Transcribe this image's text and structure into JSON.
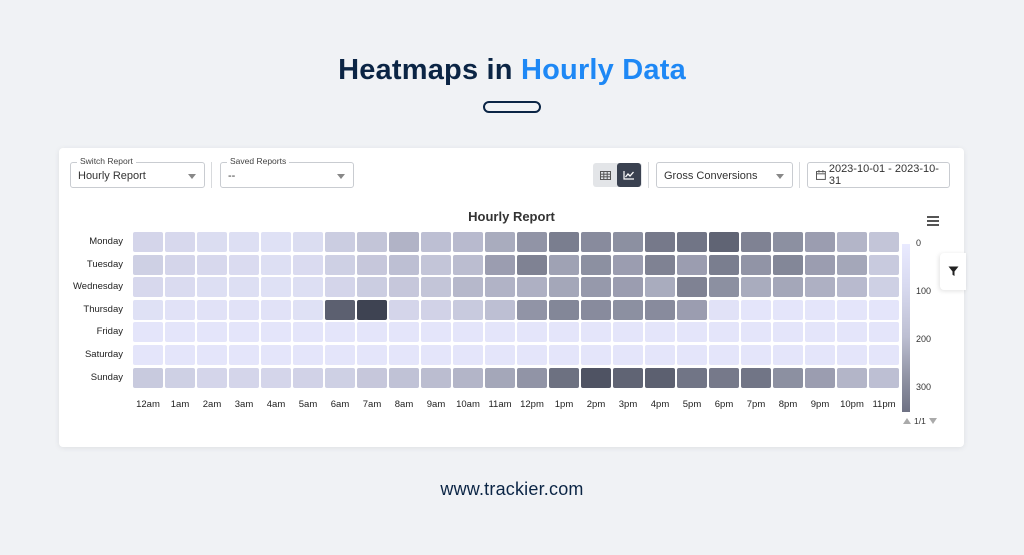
{
  "hero": {
    "title_part1": "Heatmaps in ",
    "title_part2": "Hourly Data"
  },
  "toolbar": {
    "switch_report": {
      "label": "Switch Report",
      "value": "Hourly Report"
    },
    "saved_reports": {
      "label": "Saved Reports",
      "value": "--"
    },
    "metric": {
      "value": "Gross Conversions"
    },
    "date_range": "2023-10-01 - 2023-10-31",
    "view_toggle": {
      "options": [
        "table-icon",
        "chart-icon"
      ],
      "active": "chart-icon"
    }
  },
  "colors": {
    "accent": "#1e88f5",
    "navy": "#0b2545",
    "toggle_active": "#3a4150"
  },
  "chart_data": {
    "type": "heatmap",
    "title": "Hourly Report",
    "rows": [
      "Monday",
      "Tuesday",
      "Wednesday",
      "Thursday",
      "Friday",
      "Saturday",
      "Sunday"
    ],
    "columns": [
      "12am",
      "1am",
      "2am",
      "3am",
      "4am",
      "5am",
      "6am",
      "7am",
      "8am",
      "9am",
      "10am",
      "11am",
      "12pm",
      "1pm",
      "2pm",
      "3pm",
      "4pm",
      "5pm",
      "6pm",
      "7pm",
      "8pm",
      "9pm",
      "10pm",
      "11pm"
    ],
    "values": [
      [
        30,
        25,
        18,
        15,
        12,
        18,
        45,
        60,
        95,
        70,
        80,
        110,
        160,
        210,
        180,
        170,
        220,
        230,
        270,
        200,
        170,
        140,
        90,
        60
      ],
      [
        40,
        30,
        25,
        20,
        15,
        20,
        40,
        55,
        70,
        60,
        75,
        140,
        200,
        130,
        170,
        140,
        200,
        140,
        210,
        160,
        190,
        140,
        120,
        50
      ],
      [
        25,
        20,
        15,
        15,
        12,
        15,
        30,
        45,
        55,
        60,
        85,
        95,
        100,
        120,
        150,
        140,
        110,
        200,
        170,
        110,
        120,
        100,
        80,
        40
      ],
      [
        12,
        10,
        10,
        10,
        10,
        12,
        280,
        400,
        30,
        35,
        50,
        70,
        160,
        190,
        180,
        170,
        180,
        140,
        10,
        5,
        5,
        5,
        5,
        5
      ],
      [
        5,
        5,
        5,
        5,
        5,
        5,
        5,
        5,
        5,
        5,
        5,
        5,
        5,
        5,
        5,
        5,
        5,
        5,
        5,
        5,
        5,
        5,
        5,
        5
      ],
      [
        5,
        5,
        5,
        5,
        5,
        5,
        5,
        5,
        5,
        5,
        5,
        5,
        5,
        5,
        5,
        5,
        5,
        5,
        5,
        5,
        5,
        5,
        5,
        5
      ],
      [
        50,
        40,
        30,
        30,
        30,
        35,
        40,
        55,
        65,
        75,
        90,
        120,
        160,
        240,
        310,
        270,
        280,
        230,
        220,
        230,
        170,
        140,
        90,
        70
      ]
    ],
    "color_axis": {
      "ticks": [
        0,
        100,
        200,
        300
      ],
      "range": [
        0,
        350
      ]
    },
    "legend_position": "right",
    "pager": "1/1"
  },
  "footer": {
    "url": "www.trackier.com"
  }
}
